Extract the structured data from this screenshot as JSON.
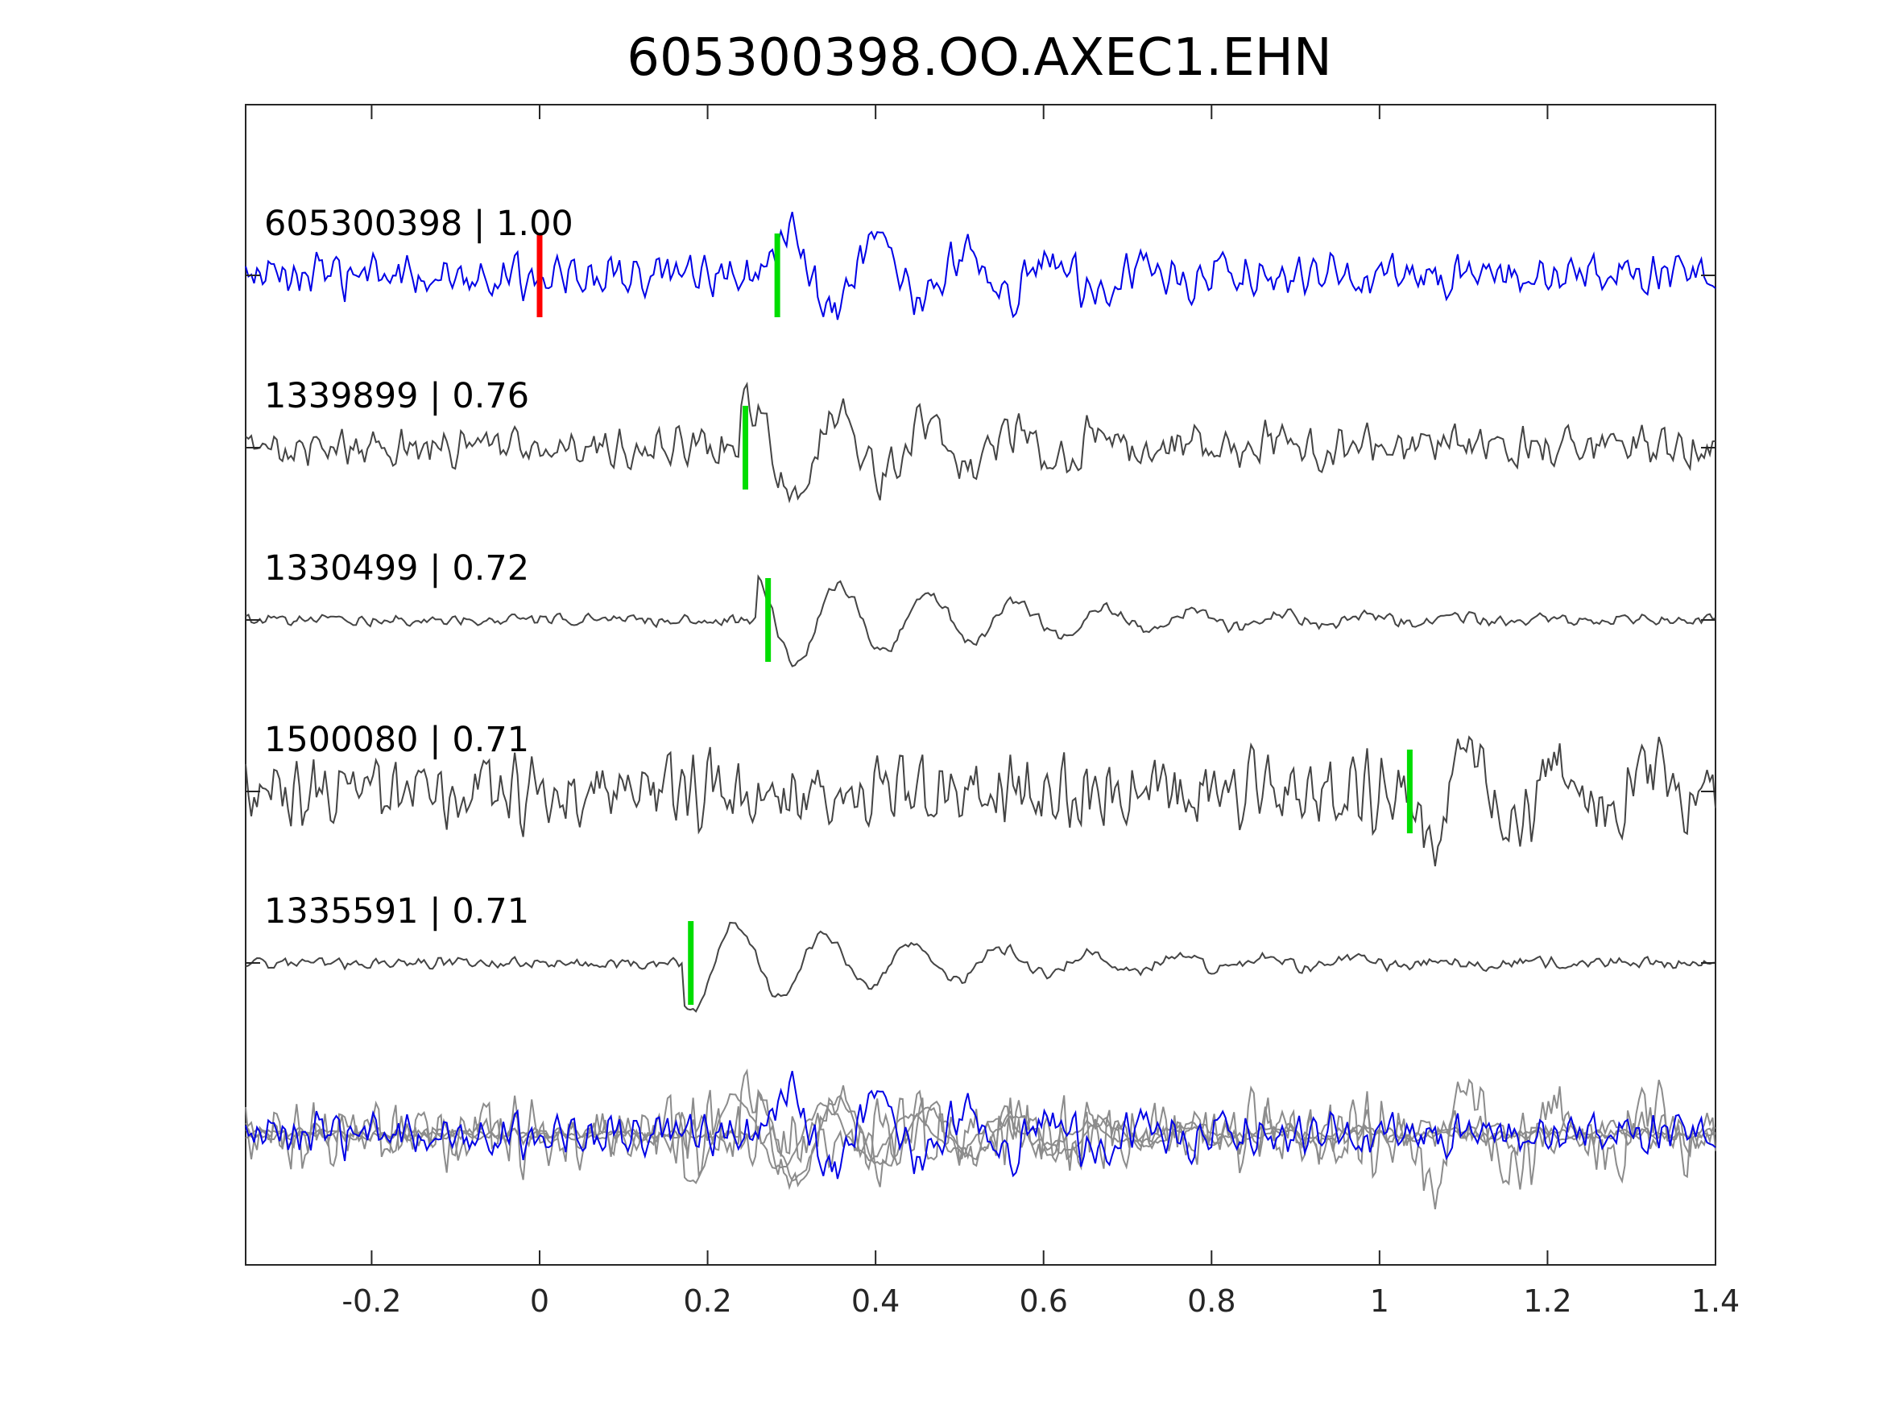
{
  "chart_data": {
    "type": "line",
    "title": "605300398.OO.AXEC1.EHN",
    "xlabel": "",
    "ylabel": "",
    "xlim": [
      -0.35,
      1.4
    ],
    "x_ticks": [
      "-0.2",
      "0",
      "0.2",
      "0.4",
      "0.6",
      "0.8",
      "1",
      "1.2",
      "1.4"
    ],
    "x_tick_values": [
      -0.2,
      0,
      0.2,
      0.4,
      0.6,
      0.8,
      1.0,
      1.2,
      1.4
    ],
    "grid": false,
    "legend": "none",
    "colors": {
      "template": "#0000e6",
      "match": "#444444",
      "overlay": "#8c8c8c",
      "reference_pick": "#ff0000",
      "pick": "#00dd00",
      "axis": "#262626"
    },
    "series": [
      {
        "label": "605300398 | 1.00",
        "event_id": "605300398",
        "cc": 1.0,
        "color": "#0000e6",
        "pick_time": 0.283,
        "reference_pick_time": 0.0,
        "amplitude": "moderate",
        "arrival": 0.27
      },
      {
        "label": "1339899 | 0.76",
        "event_id": "1339899",
        "cc": 0.76,
        "color": "#444444",
        "pick_time": 0.245,
        "amplitude": "moderate",
        "arrival": 0.24
      },
      {
        "label": "1330499 | 0.72",
        "event_id": "1330499",
        "cc": 0.72,
        "color": "#444444",
        "pick_time": 0.272,
        "amplitude": "low-noise",
        "arrival": 0.26
      },
      {
        "label": "1500080 | 0.71",
        "event_id": "1500080",
        "cc": 0.71,
        "color": "#444444",
        "pick_time": 1.036,
        "amplitude": "high-noise",
        "arrival": 1.03
      },
      {
        "label": "1335591 | 0.71",
        "event_id": "1335591",
        "cc": 0.71,
        "color": "#444444",
        "pick_time": 0.18,
        "amplitude": "low-noise",
        "arrival": 0.17
      }
    ],
    "overlay": "all traces superimposed"
  }
}
